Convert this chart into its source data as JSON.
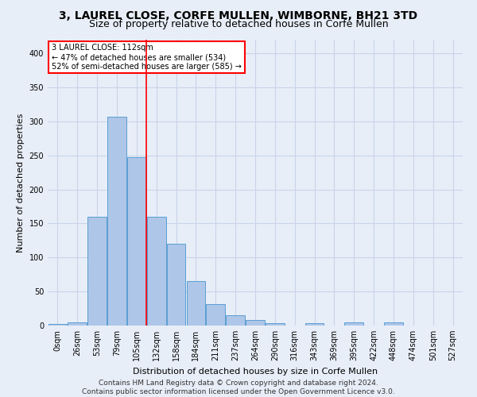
{
  "title_line1": "3, LAUREL CLOSE, CORFE MULLEN, WIMBORNE, BH21 3TD",
  "title_line2": "Size of property relative to detached houses in Corfe Mullen",
  "xlabel": "Distribution of detached houses by size in Corfe Mullen",
  "ylabel": "Number of detached properties",
  "footer_line1": "Contains HM Land Registry data © Crown copyright and database right 2024.",
  "footer_line2": "Contains public sector information licensed under the Open Government Licence v3.0.",
  "annotation_line1": "3 LAUREL CLOSE: 112sqm",
  "annotation_line2": "← 47% of detached houses are smaller (534)",
  "annotation_line3": "52% of semi-detached houses are larger (585) →",
  "bar_labels": [
    "0sqm",
    "26sqm",
    "53sqm",
    "79sqm",
    "105sqm",
    "132sqm",
    "158sqm",
    "184sqm",
    "211sqm",
    "237sqm",
    "264sqm",
    "290sqm",
    "316sqm",
    "343sqm",
    "369sqm",
    "395sqm",
    "422sqm",
    "448sqm",
    "474sqm",
    "501sqm",
    "527sqm"
  ],
  "bar_values": [
    2,
    5,
    160,
    307,
    247,
    160,
    120,
    65,
    31,
    15,
    8,
    4,
    0,
    3,
    0,
    5,
    0,
    5,
    0,
    0,
    0
  ],
  "bar_color": "#aec6e8",
  "bar_edge_color": "#5a9fd4",
  "red_line_x": 4.5,
  "ylim": [
    0,
    420
  ],
  "yticks": [
    0,
    50,
    100,
    150,
    200,
    250,
    300,
    350,
    400
  ],
  "background_color": "#e8eef8",
  "grid_color": "#c8d4e8",
  "title_fontsize": 10,
  "subtitle_fontsize": 9,
  "annotation_box_color": "white",
  "annotation_box_edge": "red",
  "footer_fontsize": 6.5,
  "axis_label_fontsize": 8,
  "tick_fontsize": 7
}
